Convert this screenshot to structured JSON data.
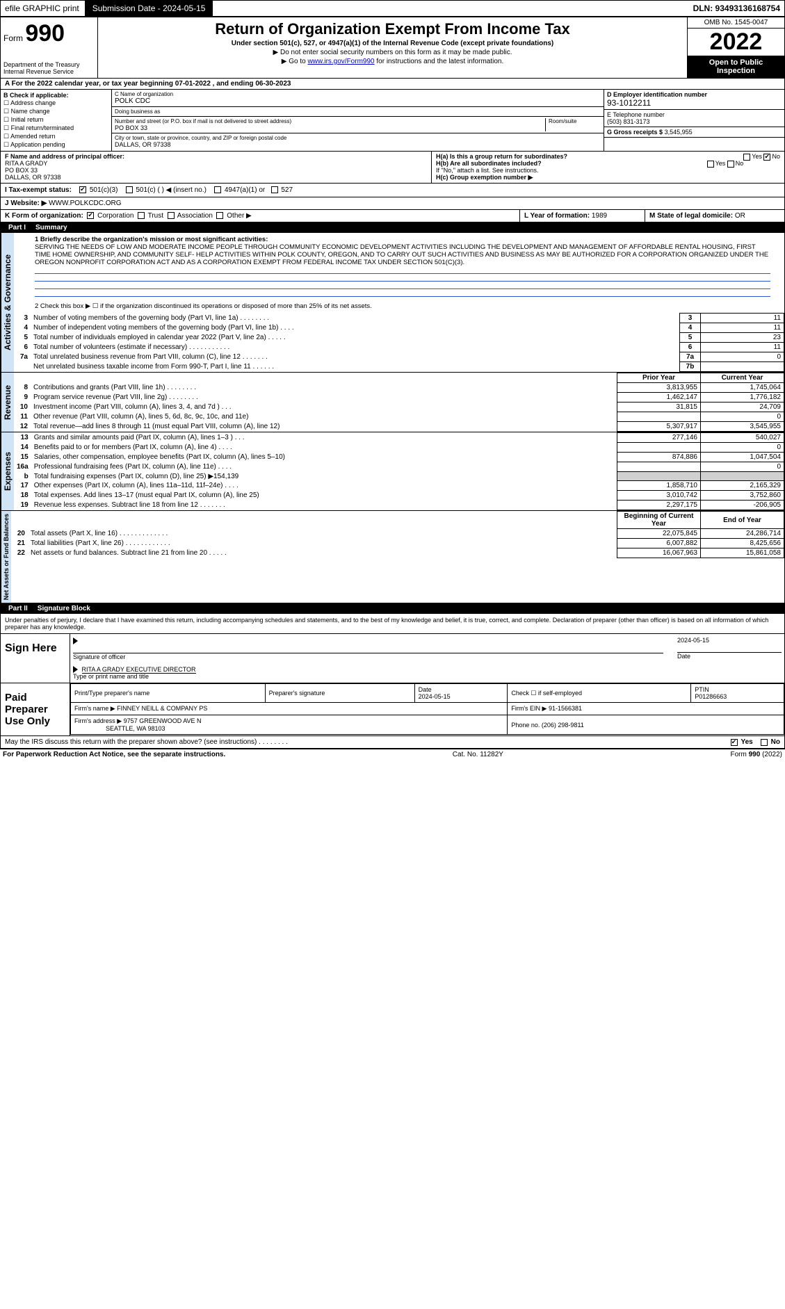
{
  "topbar": {
    "efile": "efile GRAPHIC print",
    "submission_btn": "Submission Date - 2024-05-15",
    "dln": "DLN: 93493136168754"
  },
  "header": {
    "form_label": "Form",
    "form_num": "990",
    "dept": "Department of the Treasury Internal Revenue Service",
    "title": "Return of Organization Exempt From Income Tax",
    "sub": "Under section 501(c), 527, or 4947(a)(1) of the Internal Revenue Code (except private foundations)",
    "sub2": "▶ Do not enter social security numbers on this form as it may be made public.",
    "sub3_pre": "▶ Go to ",
    "sub3_link": "www.irs.gov/Form990",
    "sub3_post": " for instructions and the latest information.",
    "omb": "OMB No. 1545-0047",
    "year": "2022",
    "inspect": "Open to Public Inspection"
  },
  "calrow": "A For the 2022 calendar year, or tax year beginning 07-01-2022  , and ending 06-30-2023",
  "blockB": {
    "header": "B Check if applicable:",
    "items": [
      "☐ Address change",
      "☐ Name change",
      "☐ Initial return",
      "☐ Final return/terminated",
      "☐ Amended return",
      "☐ Application pending"
    ]
  },
  "blockC": {
    "name_label": "C Name of organization",
    "name": "POLK CDC",
    "dba_label": "Doing business as",
    "dba": "",
    "street_label": "Number and street (or P.O. box if mail is not delivered to street address)",
    "street": "PO BOX 33",
    "room_label": "Room/suite",
    "city_label": "City or town, state or province, country, and ZIP or foreign postal code",
    "city": "DALLAS, OR  97338"
  },
  "blockD": {
    "label": "D Employer identification number",
    "ein": "93-1012211"
  },
  "blockE": {
    "label": "E Telephone number",
    "phone": "(503) 831-3173"
  },
  "blockG": {
    "label": "G Gross receipts $",
    "val": "3,545,955"
  },
  "blockF": {
    "label": "F  Name and address of principal officer:",
    "name": "RITA A GRADY",
    "addr1": "PO BOX 33",
    "addr2": "DALLAS, OR  97338"
  },
  "blockH": {
    "a_label": "H(a)  Is this a group return for subordinates?",
    "a_yes": "Yes",
    "a_no": "No",
    "b_label": "H(b)  Are all subordinates included?",
    "b_yes": "Yes",
    "b_no": "No",
    "b_note": "If \"No,\" attach a list. See instructions.",
    "c_label": "H(c)  Group exemption number ▶"
  },
  "blockI": {
    "label": "I  Tax-exempt status:",
    "opts": [
      "501(c)(3)",
      "501(c) (  ) ◀ (insert no.)",
      "4947(a)(1) or",
      "527"
    ]
  },
  "blockJ": {
    "label": "J  Website: ▶",
    "val": "WWW.POLKCDC.ORG"
  },
  "blockK": {
    "label": "K Form of organization:",
    "opts": [
      "Corporation",
      "Trust",
      "Association",
      "Other ▶"
    ]
  },
  "blockL": {
    "label": "L Year of formation:",
    "val": "1989"
  },
  "blockM": {
    "label": "M State of legal domicile:",
    "val": "OR"
  },
  "partI": {
    "num": "Part I",
    "title": "Summary"
  },
  "mission": {
    "label": "1   Briefly describe the organization's mission or most significant activities:",
    "text": "SERVING THE NEEDS OF LOW AND MODERATE INCOME PEOPLE THROUGH COMMUNITY ECONOMIC DEVELOPMENT ACTIVITIES INCLUDING THE DEVELOPMENT AND MANAGEMENT OF AFFORDABLE RENTAL HOUSING, FIRST TIME HOME OWNERSHIP, AND COMMUNITY SELF- HELP ACTIVITIES WITHIN POLK COUNTY, OREGON, AND TO CARRY OUT SUCH ACTIVITIES AND BUSINESS AS MAY BE AUTHORIZED FOR A CORPORATION ORGANIZED UNDER THE OREGON NONPROFIT CORPORATION ACT AND AS A CORPORATION EXEMPT FROM FEDERAL INCOME TAX UNDER SECTION 501(C)(3)."
  },
  "line2": "2   Check this box ▶ ☐ if the organization discontinued its operations or disposed of more than 25% of its net assets.",
  "activities_rows": [
    {
      "n": "3",
      "t": "Number of voting members of the governing body (Part VI, line 1a)  .   .   .   .   .   .   .   .",
      "box": "3",
      "v": "11"
    },
    {
      "n": "4",
      "t": "Number of independent voting members of the governing body (Part VI, line 1b)   .   .   .   .",
      "box": "4",
      "v": "11"
    },
    {
      "n": "5",
      "t": "Total number of individuals employed in calendar year 2022 (Part V, line 2a)   .   .   .   .   .",
      "box": "5",
      "v": "23"
    },
    {
      "n": "6",
      "t": "Total number of volunteers (estimate if necessary)   .   .   .   .   .   .   .   .   .   .   .",
      "box": "6",
      "v": "11"
    },
    {
      "n": "7a",
      "t": "Total unrelated business revenue from Part VIII, column (C), line 12   .   .   .   .   .   .   .",
      "box": "7a",
      "v": "0"
    },
    {
      "n": "",
      "t": "Net unrelated business taxable income from Form 990-T, Part I, line 11   .   .   .   .   .   .",
      "box": "7b",
      "v": ""
    }
  ],
  "two_col_header": {
    "prior": "Prior Year",
    "current": "Current Year"
  },
  "revenue_rows": [
    {
      "n": "8",
      "t": "Contributions and grants (Part VIII, line 1h)   .   .   .   .   .   .   .   .",
      "p": "3,813,955",
      "c": "1,745,064"
    },
    {
      "n": "9",
      "t": "Program service revenue (Part VIII, line 2g)   .   .   .   .   .   .   .   .",
      "p": "1,462,147",
      "c": "1,776,182"
    },
    {
      "n": "10",
      "t": "Investment income (Part VIII, column (A), lines 3, 4, and 7d )   .   .   .",
      "p": "31,815",
      "c": "24,709"
    },
    {
      "n": "11",
      "t": "Other revenue (Part VIII, column (A), lines 5, 6d, 8c, 9c, 10c, and 11e)",
      "p": "",
      "c": "0"
    },
    {
      "n": "12",
      "t": "Total revenue—add lines 8 through 11 (must equal Part VIII, column (A), line 12)",
      "p": "5,307,917",
      "c": "3,545,955"
    }
  ],
  "expense_rows": [
    {
      "n": "13",
      "t": "Grants and similar amounts paid (Part IX, column (A), lines 1–3 )   .   .   .",
      "p": "277,146",
      "c": "540,027"
    },
    {
      "n": "14",
      "t": "Benefits paid to or for members (Part IX, column (A), line 4)   .   .   .   .",
      "p": "",
      "c": "0"
    },
    {
      "n": "15",
      "t": "Salaries, other compensation, employee benefits (Part IX, column (A), lines 5–10)",
      "p": "874,886",
      "c": "1,047,504"
    },
    {
      "n": "16a",
      "t": "Professional fundraising fees (Part IX, column (A), line 11e)   .   .   .   .",
      "p": "",
      "c": "0"
    },
    {
      "n": "b",
      "t": "Total fundraising expenses (Part IX, column (D), line 25) ▶154,139",
      "p": "shade",
      "c": "shade"
    },
    {
      "n": "17",
      "t": "Other expenses (Part IX, column (A), lines 11a–11d, 11f–24e)   .   .   .   .",
      "p": "1,858,710",
      "c": "2,165,329"
    },
    {
      "n": "18",
      "t": "Total expenses. Add lines 13–17 (must equal Part IX, column (A), line 25)",
      "p": "3,010,742",
      "c": "3,752,860"
    },
    {
      "n": "19",
      "t": "Revenue less expenses. Subtract line 18 from line 12   .   .   .   .   .   .   .",
      "p": "2,297,175",
      "c": "-206,905"
    }
  ],
  "netassets_header": {
    "begin": "Beginning of Current Year",
    "end": "End of Year"
  },
  "netassets_rows": [
    {
      "n": "20",
      "t": "Total assets (Part X, line 16)   .   .   .   .   .   .   .   .   .   .   .   .   .",
      "p": "22,075,845",
      "c": "24,286,714"
    },
    {
      "n": "21",
      "t": "Total liabilities (Part X, line 26)   .   .   .   .   .   .   .   .   .   .   .   .",
      "p": "6,007,882",
      "c": "8,425,656"
    },
    {
      "n": "22",
      "t": "Net assets or fund balances. Subtract line 21 from line 20   .   .   .   .   .",
      "p": "16,067,963",
      "c": "15,861,058"
    }
  ],
  "vert_labels": {
    "activities": "Activities & Governance",
    "revenue": "Revenue",
    "expenses": "Expenses",
    "netassets": "Net Assets or Fund Balances"
  },
  "partII": {
    "num": "Part II",
    "title": "Signature Block"
  },
  "sig_decl": "Under penalties of perjury, I declare that I have examined this return, including accompanying schedules and statements, and to the best of my knowledge and belief, it is true, correct, and complete. Declaration of preparer (other than officer) is based on all information of which preparer has any knowledge.",
  "sign": {
    "label": "Sign Here",
    "officer_sig": "Signature of officer",
    "date": "2024-05-15",
    "date_label": "Date",
    "name": "RITA A GRADY  EXECUTIVE DIRECTOR",
    "name_label": "Type or print name and title"
  },
  "prep": {
    "label": "Paid Preparer Use Only",
    "h1": "Print/Type preparer's name",
    "h2": "Preparer's signature",
    "h3": "Date",
    "h3v": "2024-05-15",
    "h4": "Check ☐ if self-employed",
    "h5": "PTIN",
    "h5v": "P01286663",
    "firm_label": "Firm's name    ▶",
    "firm": "FINNEY NEILL & COMPANY PS",
    "ein_label": "Firm's EIN ▶",
    "ein": "91-1566381",
    "addr_label": "Firm's address ▶",
    "addr": "9757 GREENWOOD AVE N",
    "addr2": "SEATTLE, WA  98103",
    "phone_label": "Phone no.",
    "phone": "(206) 298-9811"
  },
  "irs_discuss": "May the IRS discuss this return with the preparer shown above? (see instructions)   .   .   .   .   .   .   .   .",
  "irs_yes": "Yes",
  "irs_no": "No",
  "footer": {
    "left": "For Paperwork Reduction Act Notice, see the separate instructions.",
    "mid": "Cat. No. 11282Y",
    "right": "Form 990 (2022)"
  }
}
